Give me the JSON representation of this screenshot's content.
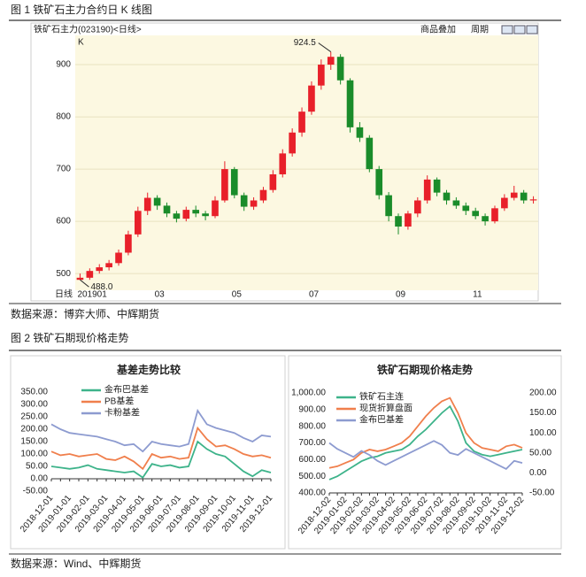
{
  "captions": [
    "图 1 铁矿石主力合约日 K 线图",
    "图 2 铁矿石期现价格走势"
  ],
  "sources": [
    "数据来源：博弈大师、中辉期货",
    "数据来源：Wind、中辉期货"
  ],
  "chart_data": [
    {
      "type": "candlestick",
      "title": "铁矿石主力(023190)<日线>",
      "toolbar": [
        "商品叠加",
        "周期"
      ],
      "indicator": "K",
      "xlabel": "日线",
      "categories": [
        "201901",
        null,
        null,
        null,
        null,
        null,
        null,
        null,
        "03",
        null,
        null,
        null,
        null,
        null,
        null,
        null,
        "05",
        null,
        null,
        null,
        null,
        null,
        null,
        null,
        "07",
        null,
        null,
        null,
        null,
        null,
        null,
        null,
        null,
        "09",
        null,
        null,
        null,
        null,
        null,
        null,
        null,
        "11",
        null,
        null,
        null,
        null,
        null,
        null
      ],
      "open": [
        488,
        492,
        505,
        512,
        520,
        540,
        575,
        620,
        645,
        630,
        615,
        605,
        622,
        615,
        610,
        640,
        700,
        650,
        628,
        640,
        660,
        690,
        730,
        770,
        810,
        860,
        900,
        915,
        870,
        780,
        760,
        700,
        650,
        610,
        590,
        615,
        640,
        680,
        655,
        640,
        630,
        620,
        610,
        600,
        625,
        645,
        655,
        640
      ],
      "high": [
        500,
        510,
        518,
        526,
        546,
        582,
        628,
        655,
        650,
        636,
        620,
        628,
        630,
        620,
        648,
        715,
        704,
        655,
        646,
        666,
        698,
        738,
        778,
        818,
        868,
        910,
        924.5,
        920,
        874,
        790,
        765,
        706,
        656,
        615,
        620,
        646,
        688,
        684,
        660,
        646,
        636,
        626,
        615,
        630,
        652,
        668,
        660,
        648
      ],
      "low": [
        488,
        488,
        500,
        506,
        515,
        535,
        570,
        612,
        622,
        608,
        598,
        600,
        608,
        602,
        606,
        636,
        644,
        620,
        622,
        635,
        655,
        684,
        724,
        762,
        804,
        852,
        890,
        862,
        770,
        752,
        694,
        642,
        600,
        575,
        584,
        608,
        634,
        648,
        632,
        624,
        612,
        604,
        592,
        596,
        620,
        640,
        634,
        634
      ],
      "close": [
        492,
        505,
        512,
        520,
        540,
        575,
        620,
        645,
        630,
        615,
        605,
        622,
        615,
        610,
        640,
        700,
        650,
        628,
        640,
        660,
        690,
        730,
        770,
        810,
        860,
        900,
        915,
        870,
        780,
        760,
        700,
        650,
        610,
        590,
        615,
        640,
        680,
        655,
        640,
        630,
        620,
        610,
        600,
        625,
        645,
        655,
        640,
        642
      ],
      "annotations": [
        {
          "text": "924.5",
          "index": 26,
          "value": 924.5
        },
        {
          "text": "488.0",
          "index": 0,
          "value": 488
        }
      ],
      "up_color": "#e8202a",
      "down_color": "#1a8c2a",
      "ylim": [
        468,
        956
      ],
      "yticks": [
        500,
        600,
        700,
        800,
        900
      ]
    },
    {
      "type": "line",
      "title": "基差走势比较",
      "categories": [
        "2018-12-01",
        null,
        "2019-01-01",
        null,
        "2019-02-01",
        null,
        "2019-03-01",
        null,
        "2019-04-01",
        null,
        "2019-05-01",
        null,
        "2019-06-01",
        null,
        "2019-07-01",
        null,
        "2019-08-01",
        null,
        "2019-09-01",
        null,
        "2019-10-01",
        null,
        "2019-11-01",
        null,
        "2019-12-01"
      ],
      "series": [
        {
          "name": "金布巴基差",
          "color": "#3db38a",
          "values": [
            50,
            45,
            40,
            45,
            55,
            40,
            35,
            30,
            25,
            30,
            5,
            60,
            50,
            55,
            45,
            50,
            150,
            120,
            100,
            90,
            60,
            30,
            10,
            35,
            25
          ]
        },
        {
          "name": "PB基差",
          "color": "#f07f4c",
          "values": [
            110,
            95,
            100,
            90,
            95,
            100,
            80,
            75,
            90,
            70,
            40,
            100,
            85,
            90,
            80,
            85,
            205,
            160,
            130,
            135,
            120,
            100,
            90,
            95,
            85
          ]
        },
        {
          "name": "卡粉基差",
          "color": "#8d9bd0",
          "values": [
            220,
            200,
            185,
            180,
            175,
            170,
            160,
            150,
            135,
            140,
            110,
            150,
            140,
            135,
            130,
            140,
            275,
            220,
            205,
            195,
            185,
            165,
            150,
            175,
            170
          ]
        }
      ],
      "ylim": [
        -50,
        350
      ],
      "yticks": [
        {
          "value": -50,
          "label": "-50.00"
        },
        {
          "value": 0,
          "label": "0.00"
        },
        {
          "value": 50,
          "label": "50.00"
        },
        {
          "value": 100,
          "label": "100.00"
        },
        {
          "value": 150,
          "label": "150.00"
        },
        {
          "value": 200,
          "label": "200.00"
        },
        {
          "value": 250,
          "label": "250.00"
        },
        {
          "value": 300,
          "label": "300.00"
        },
        {
          "value": 350,
          "label": "350.00"
        }
      ]
    },
    {
      "type": "line",
      "title": "铁矿石期现价格走势",
      "categories": [
        "2018-12-02",
        null,
        "2019-01-02",
        null,
        "2019-02-02",
        null,
        "2019-03-02",
        null,
        "2019-04-02",
        null,
        "2019-05-02",
        null,
        "2019-06-02",
        null,
        "2019-07-02",
        null,
        "2019-08-02",
        null,
        "2019-09-02",
        null,
        "2019-10-02",
        null,
        "2019-11-02",
        null,
        "2019-12-02"
      ],
      "series": [
        {
          "name": "铁矿石主连",
          "color": "#3db38a",
          "values": [
            480,
            500,
            530,
            560,
            590,
            610,
            620,
            640,
            650,
            660,
            690,
            740,
            780,
            830,
            880,
            920,
            830,
            700,
            650,
            630,
            620,
            630,
            640,
            650,
            660
          ]
        },
        {
          "name": "现货折算盘面",
          "color": "#f07f4c",
          "values": [
            550,
            560,
            580,
            600,
            640,
            660,
            650,
            660,
            680,
            700,
            740,
            800,
            860,
            910,
            950,
            970,
            880,
            760,
            700,
            670,
            660,
            650,
            680,
            690,
            670
          ]
        },
        {
          "name": "金布巴基差",
          "color": "#8d9bd0",
          "axis": "y2",
          "values": [
            75,
            60,
            50,
            40,
            55,
            45,
            30,
            20,
            30,
            40,
            50,
            60,
            70,
            80,
            70,
            50,
            45,
            60,
            50,
            40,
            30,
            20,
            10,
            30,
            25
          ]
        }
      ],
      "ylim": [
        400,
        1000
      ],
      "yticks": [
        {
          "value": 400,
          "label": "400.00"
        },
        {
          "value": 500,
          "label": "500.00"
        },
        {
          "value": 600,
          "label": "600.00"
        },
        {
          "value": 700,
          "label": "700.00"
        },
        {
          "value": 800,
          "label": "800.00"
        },
        {
          "value": 900,
          "label": "900.00"
        },
        {
          "value": 1000,
          "label": "1,000.00"
        }
      ],
      "y2lim": [
        -50,
        200
      ],
      "y2ticks": [
        {
          "value": -50,
          "label": "-50.00"
        },
        {
          "value": 0,
          "label": "0.00"
        },
        {
          "value": 50,
          "label": "50.00"
        },
        {
          "value": 100,
          "label": "100.00"
        },
        {
          "value": 150,
          "label": "150.00"
        },
        {
          "value": 200,
          "label": "200.00"
        }
      ]
    }
  ]
}
